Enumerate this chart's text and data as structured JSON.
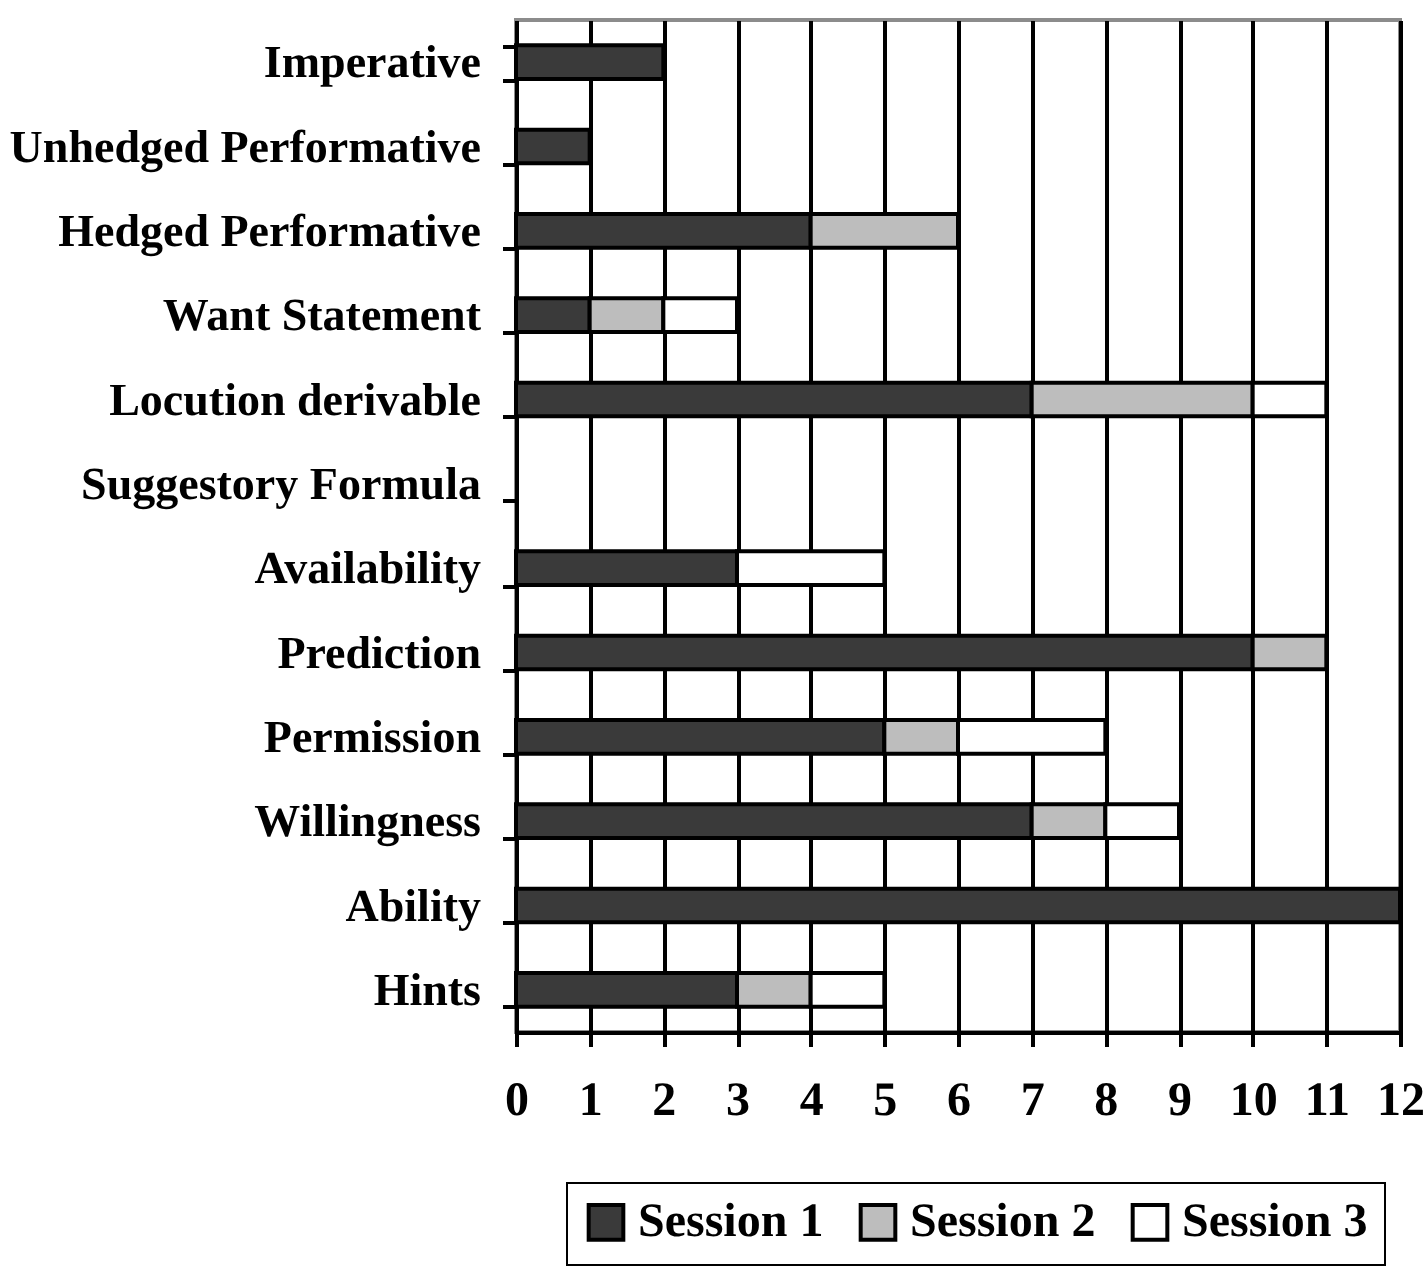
{
  "chart_data": {
    "type": "bar",
    "orientation": "horizontal",
    "stacked": true,
    "categories": [
      "Imperative",
      "Unhedged Performative",
      "Hedged Performative",
      "Want Statement",
      "Locution derivable",
      "Suggestory Formula",
      "Availability",
      "Prediction",
      "Permission",
      "Willingness",
      "Ability",
      "Hints"
    ],
    "series": [
      {
        "name": "Session 1",
        "color": "#3a3a3a",
        "values": [
          2,
          1,
          4,
          1,
          7,
          null,
          3,
          10,
          5,
          7,
          12,
          3
        ]
      },
      {
        "name": "Session 2",
        "color": "#bdbdbd",
        "values": [
          null,
          null,
          2,
          1,
          3,
          null,
          null,
          1,
          1,
          1,
          null,
          1
        ]
      },
      {
        "name": "Session 3",
        "color": "#ffffff",
        "values": [
          null,
          null,
          null,
          1,
          1,
          null,
          2,
          null,
          2,
          1,
          null,
          1
        ]
      }
    ],
    "xlim": [
      0,
      12
    ],
    "xticks": [
      0,
      1,
      2,
      3,
      4,
      5,
      6,
      7,
      8,
      9,
      10,
      11,
      12
    ],
    "grid": "x",
    "legend": "bottom"
  }
}
